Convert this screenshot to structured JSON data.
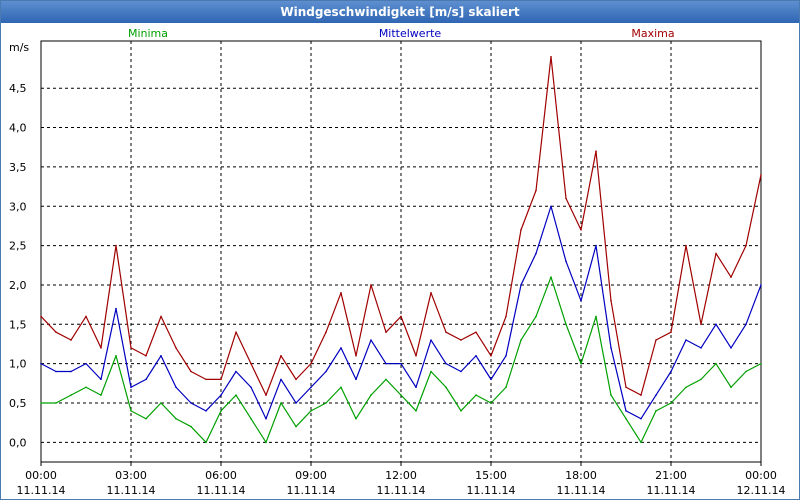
{
  "window": {
    "title": "Windgeschwindigkeit [m/s] skaliert"
  },
  "chart_data": {
    "type": "line",
    "title": "Windgeschwindigkeit [m/s] skaliert",
    "ylabel": "m/s",
    "xlabel": "",
    "ylim": [
      -0.25,
      5.1
    ],
    "xlim": [
      0,
      24
    ],
    "y_ticks": [
      0.0,
      0.5,
      1.0,
      1.5,
      2.0,
      2.5,
      3.0,
      3.5,
      4.0,
      4.5
    ],
    "y_tick_labels": [
      "0,0",
      "0,5",
      "1,0",
      "1,5",
      "2,0",
      "2,5",
      "3,0",
      "3,5",
      "4,0",
      "4,5"
    ],
    "x_ticks": [
      0,
      3,
      6,
      9,
      12,
      15,
      18,
      21,
      24
    ],
    "x_tick_labels": [
      {
        "time": "00:00",
        "date": "11.11.14"
      },
      {
        "time": "03:00",
        "date": "11.11.14"
      },
      {
        "time": "06:00",
        "date": "11.11.14"
      },
      {
        "time": "09:00",
        "date": "11.11.14"
      },
      {
        "time": "12:00",
        "date": "11.11.14"
      },
      {
        "time": "15:00",
        "date": "11.11.14"
      },
      {
        "time": "18:00",
        "date": "11.11.14"
      },
      {
        "time": "21:00",
        "date": "11.11.14"
      },
      {
        "time": "00:00",
        "date": "12.11.14"
      }
    ],
    "grid": true,
    "legend_position": "top",
    "x": [
      0,
      0.5,
      1,
      1.5,
      2,
      2.5,
      3,
      3.5,
      4,
      4.5,
      5,
      5.5,
      6,
      6.5,
      7,
      7.5,
      8,
      8.5,
      9,
      9.5,
      10,
      10.5,
      11,
      11.5,
      12,
      12.5,
      13,
      13.5,
      14,
      14.5,
      15,
      15.5,
      16,
      16.5,
      17,
      17.5,
      18,
      18.5,
      19,
      19.5,
      20,
      20.5,
      21,
      21.5,
      22,
      22.5,
      23,
      23.5,
      24
    ],
    "series": [
      {
        "name": "Minima",
        "color": "#00a000",
        "values": [
          0.5,
          0.5,
          0.6,
          0.7,
          0.6,
          1.1,
          0.4,
          0.3,
          0.5,
          0.3,
          0.2,
          0.0,
          0.4,
          0.6,
          0.3,
          0.0,
          0.5,
          0.2,
          0.4,
          0.5,
          0.7,
          0.3,
          0.6,
          0.8,
          0.6,
          0.4,
          0.9,
          0.7,
          0.4,
          0.6,
          0.5,
          0.7,
          1.3,
          1.6,
          2.1,
          1.5,
          1.0,
          1.6,
          0.6,
          0.3,
          0.0,
          0.4,
          0.5,
          0.7,
          0.8,
          1.0,
          0.7,
          0.9,
          1.0
        ]
      },
      {
        "name": "Mittelwerte",
        "color": "#0000c0",
        "values": [
          1.0,
          0.9,
          0.9,
          1.0,
          0.8,
          1.7,
          0.7,
          0.8,
          1.1,
          0.7,
          0.5,
          0.4,
          0.6,
          0.9,
          0.7,
          0.3,
          0.8,
          0.5,
          0.7,
          0.9,
          1.2,
          0.8,
          1.3,
          1.0,
          1.0,
          0.7,
          1.3,
          1.0,
          0.9,
          1.1,
          0.8,
          1.1,
          2.0,
          2.4,
          3.0,
          2.3,
          1.8,
          2.5,
          1.2,
          0.4,
          0.3,
          0.6,
          0.9,
          1.3,
          1.2,
          1.5,
          1.2,
          1.5,
          2.0
        ]
      },
      {
        "name": "Maxima",
        "color": "#a00000",
        "values": [
          1.6,
          1.4,
          1.3,
          1.6,
          1.2,
          2.5,
          1.2,
          1.1,
          1.6,
          1.2,
          0.9,
          0.8,
          0.8,
          1.4,
          1.0,
          0.6,
          1.1,
          0.8,
          1.0,
          1.4,
          1.9,
          1.1,
          2.0,
          1.4,
          1.6,
          1.1,
          1.9,
          1.4,
          1.3,
          1.4,
          1.1,
          1.6,
          2.7,
          3.2,
          4.9,
          3.1,
          2.7,
          3.7,
          1.8,
          0.7,
          0.6,
          1.3,
          1.4,
          2.5,
          1.5,
          2.4,
          2.1,
          2.5,
          3.4
        ]
      }
    ]
  }
}
